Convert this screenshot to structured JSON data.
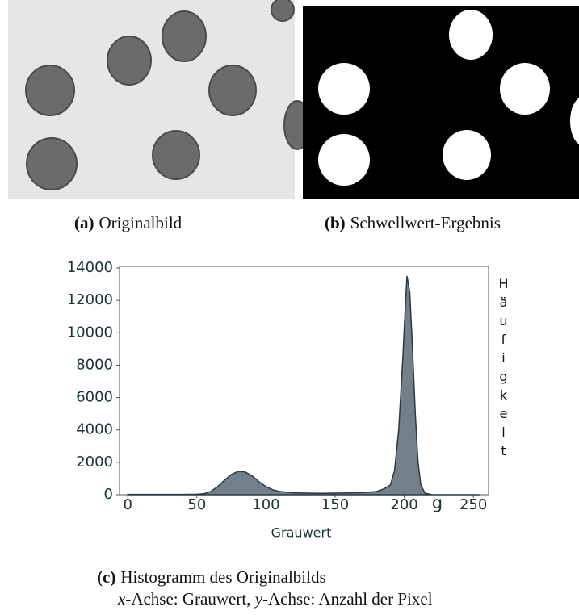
{
  "subfigures": [
    {
      "label": "(a)",
      "caption": "Originalbild"
    },
    {
      "label": "(b)",
      "caption": "Schwellwert-Ergebnis"
    }
  ],
  "figure_caption": {
    "label": "(c)",
    "title": "Histogramm des Originalbilds",
    "axes_note": [
      "x",
      "-Achse: Grauwert, ",
      "y",
      "-Achse: Anzahl der Pixel"
    ]
  },
  "chart_data": {
    "type": "area",
    "xlabel": "Grauwert",
    "ylabel": "Häufigkeit",
    "x_symbol": "g",
    "color": "#737f89",
    "edge_color": "#2a3942",
    "x": [
      0,
      20,
      40,
      50,
      55,
      60,
      65,
      70,
      75,
      80,
      85,
      90,
      95,
      100,
      105,
      110,
      120,
      130,
      140,
      150,
      160,
      170,
      180,
      185,
      190,
      193,
      196,
      199,
      201,
      202,
      204,
      206,
      208,
      210,
      212,
      215,
      220,
      230,
      255
    ],
    "values": [
      20,
      20,
      20,
      30,
      60,
      200,
      500,
      900,
      1250,
      1450,
      1400,
      1150,
      800,
      500,
      300,
      200,
      120,
      100,
      90,
      100,
      110,
      130,
      200,
      350,
      600,
      1500,
      4000,
      8500,
      12000,
      13500,
      12500,
      9000,
      5000,
      2000,
      600,
      100,
      0,
      0,
      0
    ],
    "xlim": [
      -6,
      261
    ],
    "ylim": [
      0,
      14100
    ],
    "xticks": [
      0,
      50,
      100,
      150,
      200,
      250
    ],
    "yticks": [
      0,
      2000,
      4000,
      6000,
      8000,
      10000,
      12000,
      14000
    ]
  }
}
